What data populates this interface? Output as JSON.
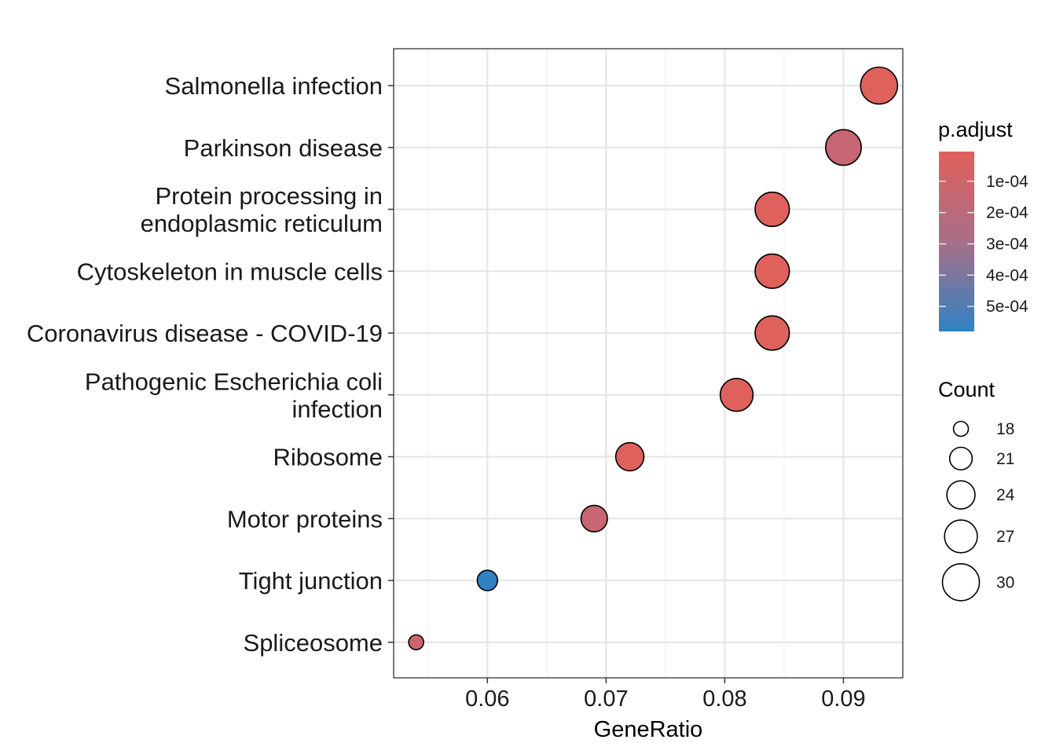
{
  "chart_data": {
    "type": "scatter",
    "xlabel": "GeneRatio",
    "ylabel": "",
    "xlim": [
      0.0521,
      0.095
    ],
    "xticks": [
      0.06,
      0.07,
      0.08,
      0.09
    ],
    "xtick_labels": [
      "0.06",
      "0.07",
      "0.08",
      "0.09"
    ],
    "grid": true,
    "points": [
      {
        "label": [
          "Salmonella infection"
        ],
        "x": 0.093,
        "count": 30,
        "p_adjust": 5e-06,
        "color": "#de615e"
      },
      {
        "label": [
          "Parkinson disease"
        ],
        "x": 0.09,
        "count": 29,
        "p_adjust": 0.00016,
        "color": "#c66673"
      },
      {
        "label": [
          "Protein processing in",
          "endoplasmic reticulum"
        ],
        "x": 0.084,
        "count": 28,
        "p_adjust": 2e-05,
        "color": "#de615e"
      },
      {
        "label": [
          "Cytoskeleton in muscle cells"
        ],
        "x": 0.084,
        "count": 28,
        "p_adjust": 2e-05,
        "color": "#de615e"
      },
      {
        "label": [
          "Coronavirus disease - COVID-19"
        ],
        "x": 0.084,
        "count": 28,
        "p_adjust": 2e-05,
        "color": "#de615e"
      },
      {
        "label": [
          "Pathogenic Escherichia coli",
          "infection"
        ],
        "x": 0.081,
        "count": 27,
        "p_adjust": 2e-05,
        "color": "#de615e"
      },
      {
        "label": [
          "Ribosome"
        ],
        "x": 0.072,
        "count": 24,
        "p_adjust": 2e-05,
        "color": "#de615e"
      },
      {
        "label": [
          "Motor proteins"
        ],
        "x": 0.069,
        "count": 23,
        "p_adjust": 0.00013,
        "color": "#c86671"
      },
      {
        "label": [
          "Tight junction"
        ],
        "x": 0.06,
        "count": 20,
        "p_adjust": 0.00057,
        "color": "#3181c3"
      },
      {
        "label": [
          "Spliceosome"
        ],
        "x": 0.054,
        "count": 18,
        "p_adjust": 0.00011,
        "color": "#cc6570"
      }
    ],
    "size_legend": {
      "title": "Count",
      "values": [
        18,
        21,
        24,
        27,
        30
      ],
      "labels": [
        "18",
        "21",
        "24",
        "27",
        "30"
      ]
    },
    "color_legend": {
      "title": "p.adjust",
      "range": [
        5e-06,
        0.00058
      ],
      "ticks": [
        0.0001,
        0.0002,
        0.0003,
        0.0004,
        0.0005
      ],
      "tick_labels": [
        "1e-04",
        "2e-04",
        "3e-04",
        "4e-04",
        "5e-04"
      ],
      "low_color": "#e0605c",
      "high_color": "#2f82c4"
    }
  }
}
